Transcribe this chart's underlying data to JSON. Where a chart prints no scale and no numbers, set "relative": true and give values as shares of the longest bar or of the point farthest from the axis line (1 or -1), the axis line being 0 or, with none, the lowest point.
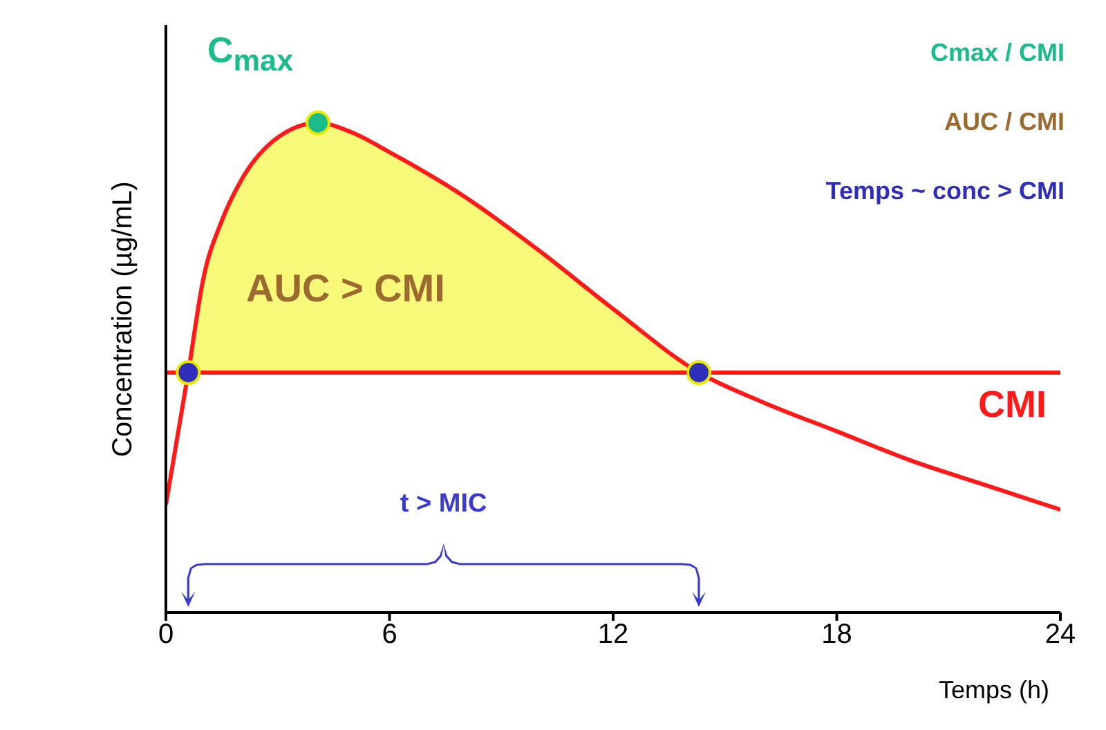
{
  "chart_data": {
    "type": "line",
    "relative": true,
    "xlabel": "Temps (h)",
    "ylabel": "Concentration (µg/mL)",
    "xlim": [
      0,
      24
    ],
    "xticks": [
      0,
      6,
      12,
      18,
      24
    ],
    "series": [
      {
        "color": "#ff1a1a",
        "x": [
          0,
          0.6,
          1,
          1.5,
          2,
          3,
          4.08,
          5,
          6,
          8,
          10,
          12,
          14.3,
          16,
          18,
          20,
          22,
          24
        ],
        "values": [
          0.22,
          0.49,
          0.68,
          0.8,
          0.88,
          0.97,
          1,
          0.98,
          0.94,
          0.85,
          0.74,
          0.62,
          0.49,
          0.43,
          0.37,
          0.31,
          0.26,
          0.21
        ],
        "lower": [
          null,
          0.49,
          0.49,
          0.49,
          0.49,
          0.49,
          0.49,
          0.49,
          0.49,
          0.49,
          0.49,
          0.49,
          0.49,
          null,
          null,
          null,
          null,
          null
        ],
        "upper": [
          null,
          0.49,
          0.68,
          0.8,
          0.88,
          0.97,
          1,
          0.98,
          0.94,
          0.85,
          0.74,
          0.62,
          0.49,
          null,
          null,
          null,
          null,
          null
        ]
      },
      {
        "type": "scatter",
        "color": "#1abc8c",
        "marker": "circle",
        "x": [
          4.08
        ],
        "values": [
          1
        ]
      },
      {
        "type": "scatter",
        "color": "#2e2eb8",
        "marker": "circle",
        "x": [
          0.6,
          14.3
        ],
        "values": [
          0.49,
          0.49
        ]
      }
    ],
    "ref_lines": [
      {
        "axis": "y",
        "value": 0.49,
        "label": "CMI",
        "color": "#ff1a1a"
      }
    ],
    "annotations": [
      "Cmax / CMI",
      "AUC / CMI",
      "Temps ~ conc > CMI",
      {
        "text": "C$_{max}$",
        "x": 4.08,
        "y": 1
      },
      "AUC > CMI",
      "t > MIC"
    ]
  }
}
